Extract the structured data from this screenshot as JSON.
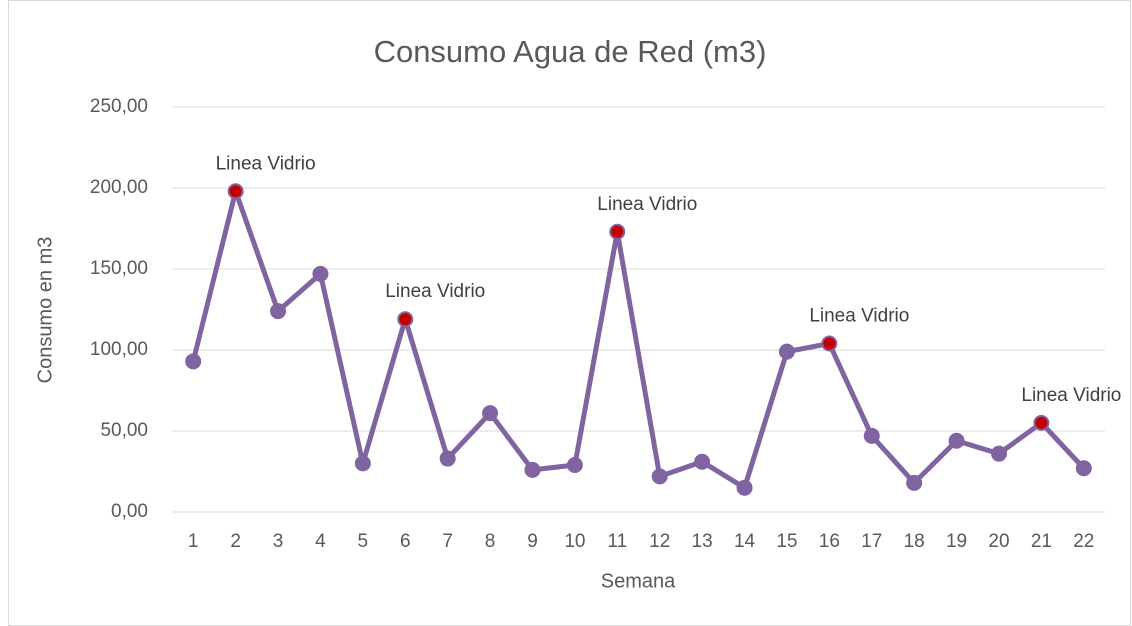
{
  "chart_data": {
    "type": "line",
    "title": "Consumo Agua de Red (m3)",
    "x_label": "Semana",
    "y_label": "Consumo en m3",
    "categories": [
      "1",
      "2",
      "3",
      "4",
      "5",
      "6",
      "7",
      "8",
      "9",
      "10",
      "11",
      "12",
      "13",
      "14",
      "15",
      "16",
      "17",
      "18",
      "19",
      "20",
      "21",
      "22"
    ],
    "series": [
      {
        "name": "Consumo",
        "color": "#8064a2",
        "values": [
          93,
          198,
          124,
          147,
          30,
          119,
          33,
          61,
          26,
          29,
          173,
          22,
          31,
          15,
          99,
          104,
          47,
          18,
          44,
          36,
          55,
          27
        ]
      }
    ],
    "annotations": [
      {
        "category": "2",
        "text": "Linea Vidrio"
      },
      {
        "category": "6",
        "text": "Linea Vidrio"
      },
      {
        "category": "11",
        "text": "Linea Vidrio"
      },
      {
        "category": "16",
        "text": "Linea Vidrio"
      },
      {
        "category": "21",
        "text": "Linea Vidrio"
      }
    ],
    "highlight_color": "#c00000",
    "ylim": [
      0,
      250
    ],
    "yticks": [
      {
        "value": 0,
        "label": "0,00"
      },
      {
        "value": 50,
        "label": "50,00"
      },
      {
        "value": 100,
        "label": "100,00"
      },
      {
        "value": 150,
        "label": "150,00"
      },
      {
        "value": 200,
        "label": "200,00"
      },
      {
        "value": 250,
        "label": "250,00"
      }
    ],
    "grid": true
  }
}
